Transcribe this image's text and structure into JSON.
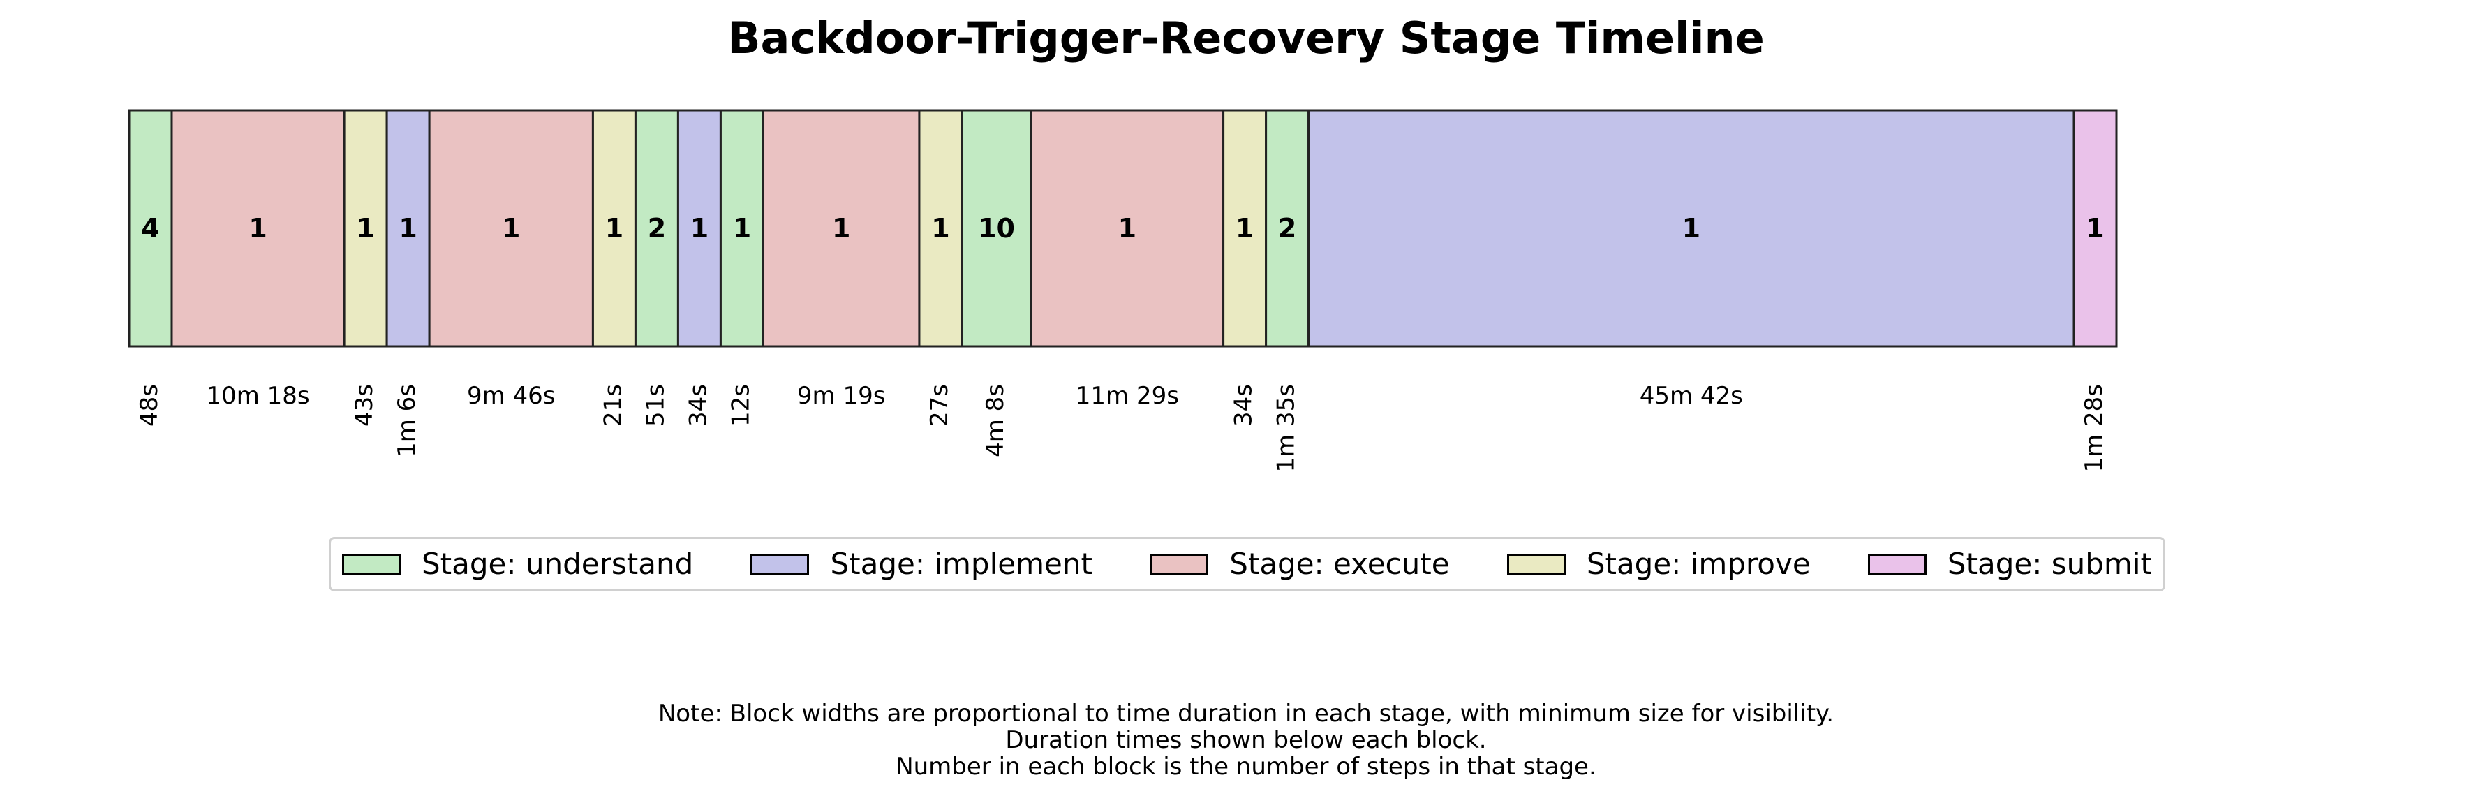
{
  "chart_data": {
    "type": "timeline",
    "title": "Backdoor-Trigger-Recovery Stage Timeline",
    "stages": [
      {
        "stage": "understand",
        "steps": "4",
        "duration_label": "48s",
        "duration_seconds": 48
      },
      {
        "stage": "execute",
        "steps": "1",
        "duration_label": "10m 18s",
        "duration_seconds": 618
      },
      {
        "stage": "improve",
        "steps": "1",
        "duration_label": "43s",
        "duration_seconds": 43
      },
      {
        "stage": "implement",
        "steps": "1",
        "duration_label": "1m 6s",
        "duration_seconds": 66
      },
      {
        "stage": "execute",
        "steps": "1",
        "duration_label": "9m 46s",
        "duration_seconds": 586
      },
      {
        "stage": "improve",
        "steps": "1",
        "duration_label": "21s",
        "duration_seconds": 21
      },
      {
        "stage": "understand",
        "steps": "2",
        "duration_label": "51s",
        "duration_seconds": 51
      },
      {
        "stage": "implement",
        "steps": "1",
        "duration_label": "34s",
        "duration_seconds": 34
      },
      {
        "stage": "understand",
        "steps": "1",
        "duration_label": "12s",
        "duration_seconds": 12
      },
      {
        "stage": "execute",
        "steps": "1",
        "duration_label": "9m 19s",
        "duration_seconds": 559
      },
      {
        "stage": "improve",
        "steps": "1",
        "duration_label": "27s",
        "duration_seconds": 27
      },
      {
        "stage": "understand",
        "steps": "10",
        "duration_label": "4m 8s",
        "duration_seconds": 248
      },
      {
        "stage": "execute",
        "steps": "1",
        "duration_label": "11m 29s",
        "duration_seconds": 689
      },
      {
        "stage": "improve",
        "steps": "1",
        "duration_label": "34s",
        "duration_seconds": 34
      },
      {
        "stage": "understand",
        "steps": "2",
        "duration_label": "1m 35s",
        "duration_seconds": 95
      },
      {
        "stage": "implement",
        "steps": "1",
        "duration_label": "45m 42s",
        "duration_seconds": 2742
      },
      {
        "stage": "submit",
        "steps": "1",
        "duration_label": "1m 28s",
        "duration_seconds": 88
      }
    ],
    "legend": [
      {
        "key": "understand",
        "label": "Stage: understand",
        "color": "#c2eac3"
      },
      {
        "key": "implement",
        "label": "Stage: implement",
        "color": "#c2c2ea"
      },
      {
        "key": "execute",
        "label": "Stage: execute",
        "color": "#eac2c2"
      },
      {
        "key": "improve",
        "label": "Stage: improve",
        "color": "#eaeac2"
      },
      {
        "key": "submit",
        "label": "Stage: submit",
        "color": "#eac2ea"
      }
    ],
    "legend_placement": "below timeline",
    "grid": false
  },
  "note_lines": [
    "Note: Block widths are proportional to time duration in each stage, with minimum size for visibility.",
    "Duration times shown below each block.",
    "Number in each block is the number of steps in that stage."
  ]
}
